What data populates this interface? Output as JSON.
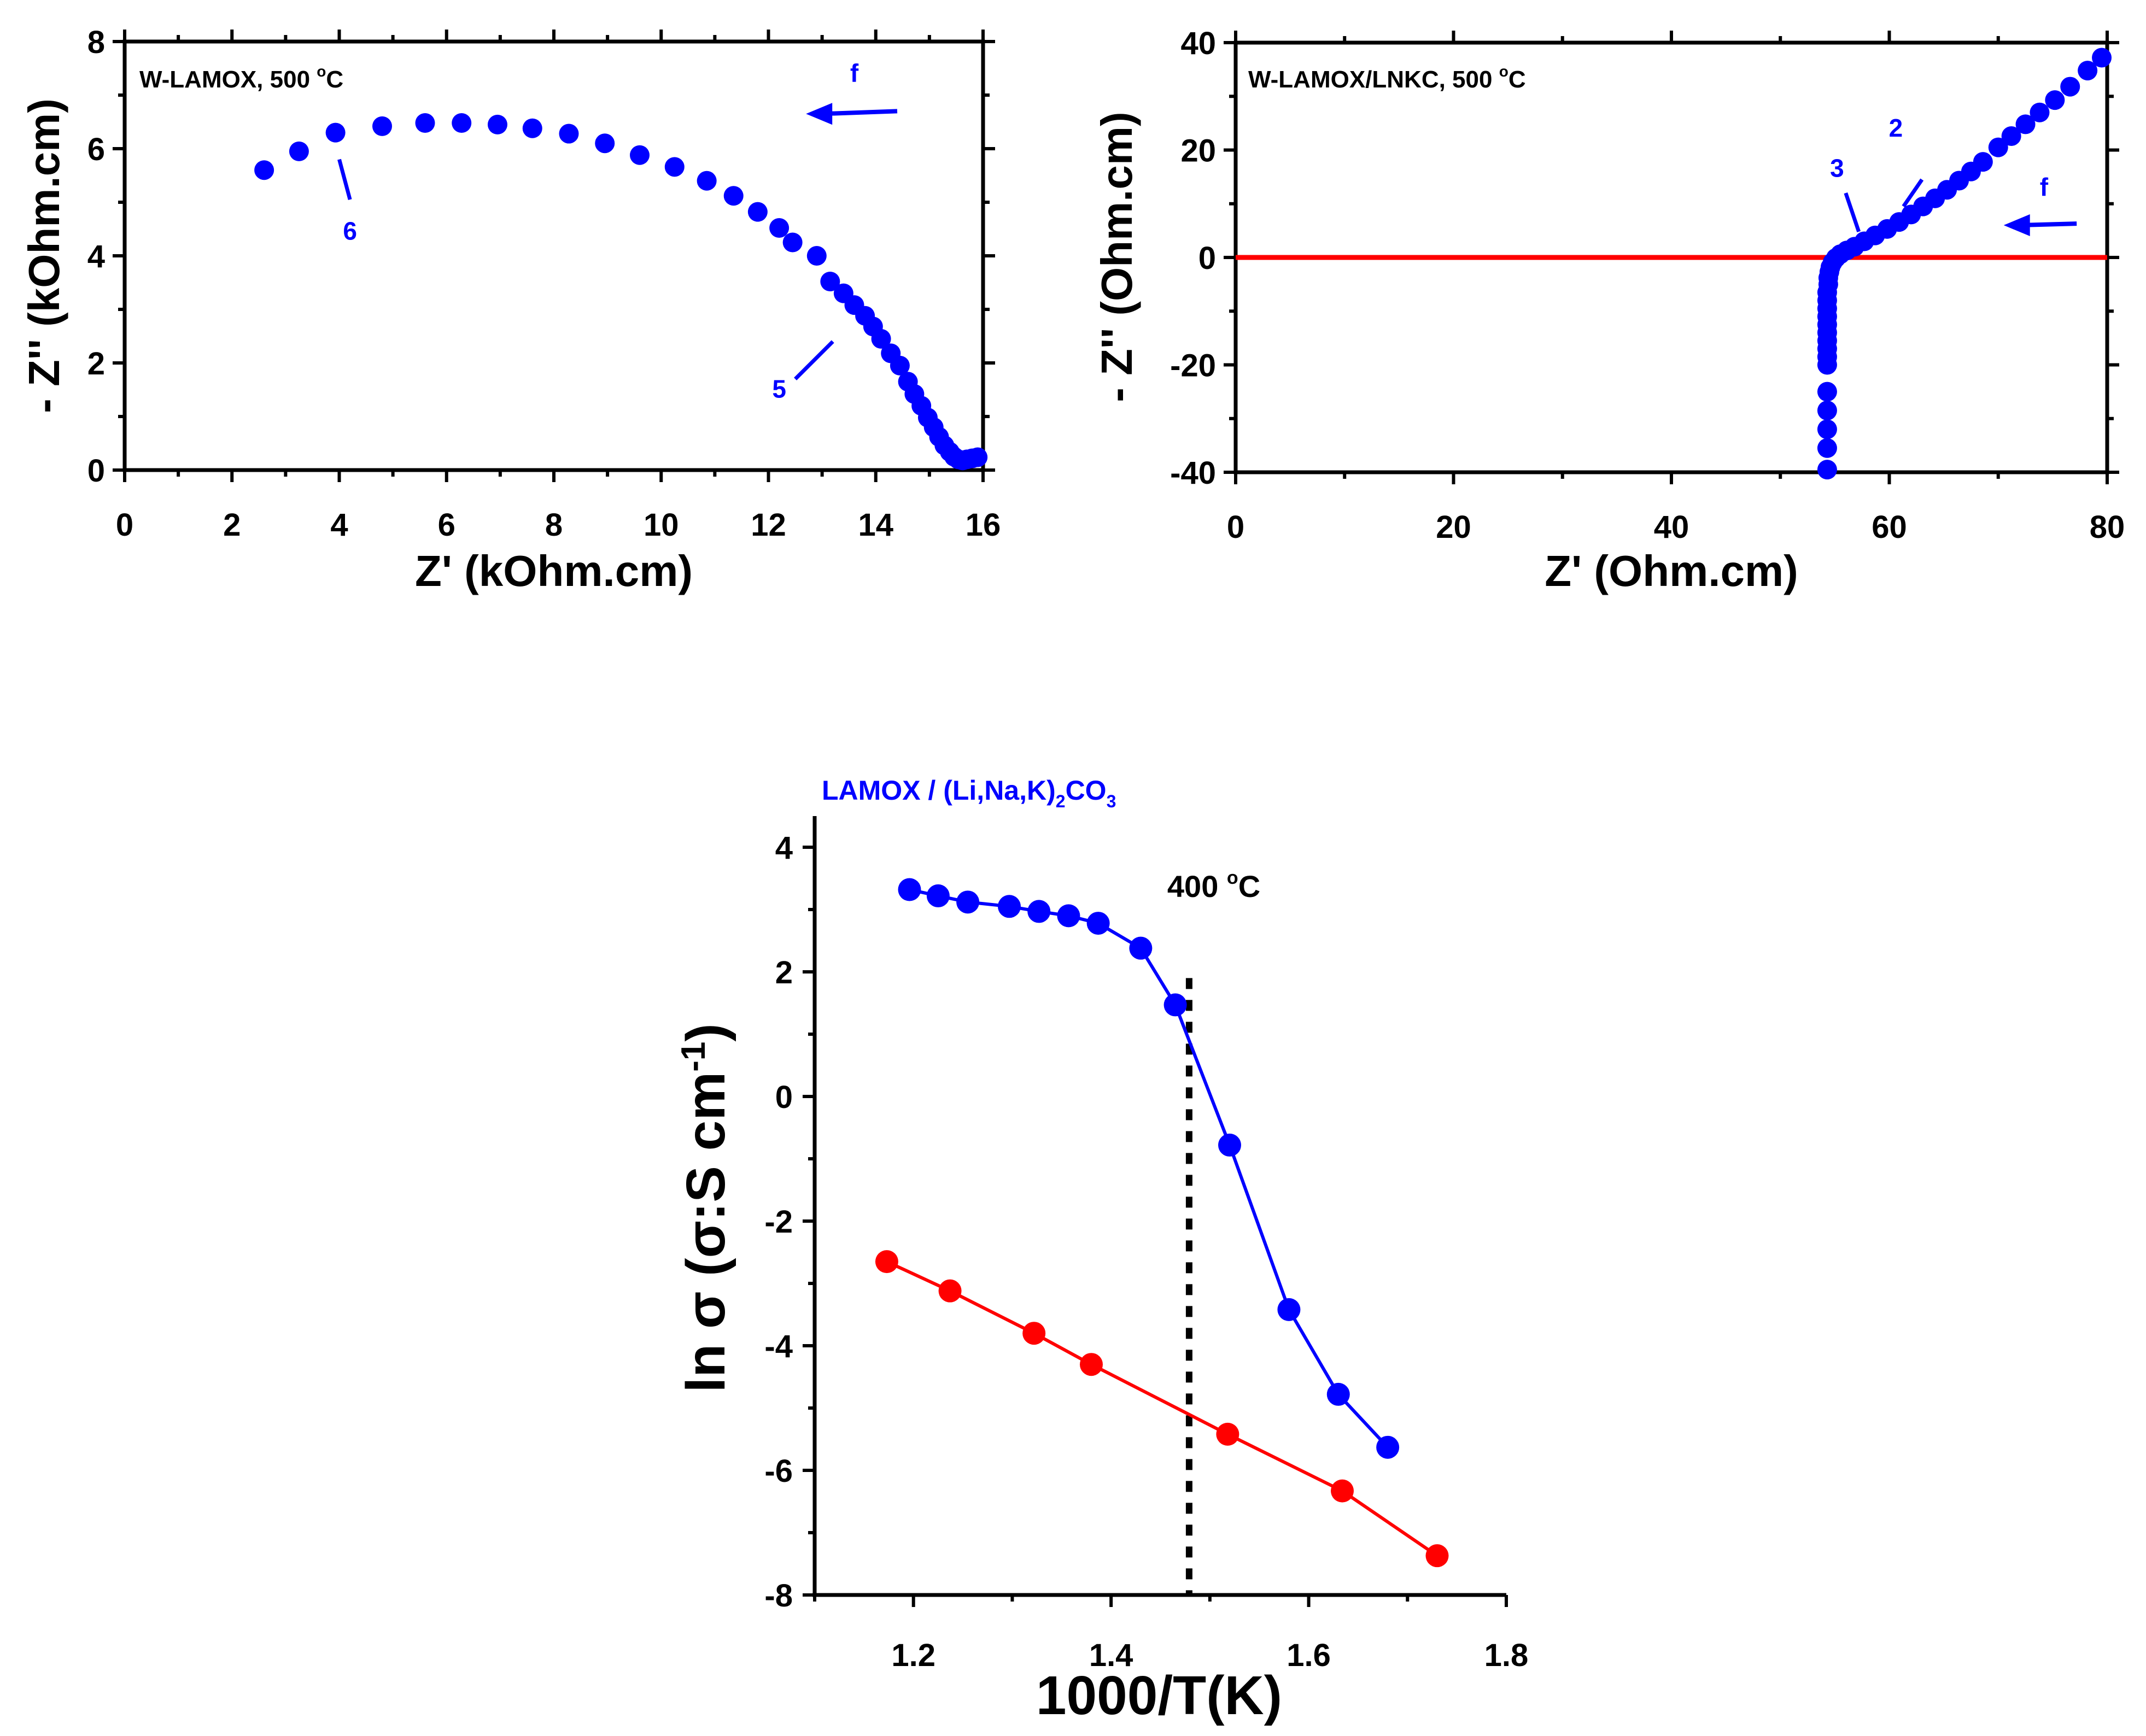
{
  "colors": {
    "blue": "#0000ff",
    "red": "#ff0000",
    "black": "#000000"
  },
  "chart_data": [
    {
      "id": "p1",
      "type": "scatter",
      "title": "W-LAMOX, 500 °C",
      "title_main": "W-LAMOX, 500 ",
      "title_sup": "o",
      "title_end": "C",
      "xlabel": "Z' (kOhm.cm)",
      "ylabel": "- Z'' (kOhm.cm)",
      "xlim": [
        0,
        16
      ],
      "ylim": [
        0,
        8
      ],
      "xticks": [
        0,
        2,
        4,
        6,
        8,
        10,
        12,
        14,
        16
      ],
      "yticks": [
        0,
        2,
        4,
        6,
        8
      ],
      "xminor": [
        1,
        3,
        5,
        7,
        9,
        11,
        13,
        15
      ],
      "yminor": [
        1,
        3,
        5,
        7
      ],
      "tick_labels_x": [
        "0",
        "2",
        "4",
        "6",
        "8",
        "10",
        "12",
        "14",
        "16"
      ],
      "tick_labels_y": [
        "0",
        "2",
        "4",
        "6",
        "8"
      ],
      "series": [
        {
          "name": "W-LAMOX",
          "color": "#0000ff",
          "x": [
            2.6,
            3.25,
            3.93,
            4.8,
            5.6,
            6.28,
            6.95,
            7.6,
            8.28,
            8.95,
            9.6,
            10.25,
            10.85,
            11.35,
            11.8,
            12.2,
            12.45,
            12.9,
            13.15,
            13.4,
            13.6,
            13.8,
            13.95,
            14.1,
            14.28,
            14.45,
            14.6,
            14.72,
            14.85,
            14.97,
            15.08,
            15.18,
            15.28,
            15.38,
            15.46,
            15.54,
            15.62,
            15.7,
            15.8,
            15.9
          ],
          "y": [
            5.6,
            5.95,
            6.3,
            6.42,
            6.48,
            6.48,
            6.45,
            6.38,
            6.28,
            6.1,
            5.88,
            5.66,
            5.4,
            5.12,
            4.82,
            4.52,
            4.25,
            4.0,
            3.52,
            3.3,
            3.08,
            2.88,
            2.68,
            2.45,
            2.18,
            1.95,
            1.65,
            1.42,
            1.2,
            0.98,
            0.8,
            0.62,
            0.46,
            0.34,
            0.25,
            0.2,
            0.18,
            0.2,
            0.22,
            0.24
          ]
        }
      ],
      "annotations": [
        {
          "text": "6",
          "pointer_from": [
            4.0,
            5.8
          ],
          "pointer_to": [
            4.2,
            5.05
          ],
          "label_at": [
            4.2,
            4.3
          ]
        },
        {
          "text": "5",
          "pointer_from": [
            13.2,
            2.4
          ],
          "pointer_to": [
            12.5,
            1.7
          ],
          "label_at": [
            12.2,
            1.35
          ]
        },
        {
          "text": "f",
          "arrow_from": [
            14.4,
            6.7
          ],
          "arrow_to": [
            12.7,
            6.65
          ],
          "label_at": [
            13.6,
            7.25
          ]
        }
      ]
    },
    {
      "id": "p2",
      "type": "scatter",
      "title": "W-LAMOX/LNKC, 500 °C",
      "title_main": "W-LAMOX/LNKC, 500 ",
      "title_sup": "o",
      "title_end": "C",
      "xlabel": "Z' (Ohm.cm)",
      "ylabel": "- Z'' (Ohm.cm)",
      "xlim": [
        0,
        80
      ],
      "ylim": [
        -40,
        40
      ],
      "xticks": [
        0,
        20,
        40,
        60,
        80
      ],
      "yticks": [
        -40,
        -20,
        0,
        20,
        40
      ],
      "xminor": [
        10,
        30,
        50,
        70
      ],
      "yminor": [
        -30,
        -10,
        10,
        30
      ],
      "tick_labels_x": [
        "0",
        "20",
        "40",
        "60",
        "80"
      ],
      "tick_labels_y": [
        "-40",
        "-20",
        "0",
        "20",
        "40"
      ],
      "reference_line": {
        "y": 0,
        "color": "#ff0000"
      },
      "series": [
        {
          "name": "W-LAMOX/LNKC",
          "color": "#0000ff",
          "x": [
            54.3,
            54.3,
            54.3,
            54.3,
            54.3,
            54.3,
            54.3,
            54.3,
            54.3,
            54.3,
            54.3,
            54.3,
            54.3,
            54.3,
            54.3,
            54.4,
            54.4,
            54.5,
            54.6,
            54.8,
            55.1,
            55.5,
            56.1,
            56.8,
            57.7,
            58.7,
            59.8,
            60.9,
            62.0,
            63.1,
            64.2,
            65.3,
            66.4,
            67.5,
            68.6,
            70.0,
            71.2,
            72.5,
            73.8,
            75.2,
            76.6,
            78.2,
            79.5
          ],
          "y": [
            -39.5,
            -35.5,
            -32.0,
            -28.5,
            -25.0,
            -20.0,
            -18.5,
            -17.0,
            -15.5,
            -14.0,
            -12.5,
            -11.0,
            -9.5,
            -8.0,
            -6.5,
            -5.0,
            -3.8,
            -2.7,
            -1.8,
            -0.9,
            -0.1,
            0.6,
            1.3,
            2.0,
            3.0,
            4.1,
            5.3,
            6.6,
            8.0,
            9.5,
            11.0,
            12.6,
            14.3,
            16.0,
            17.8,
            20.5,
            22.6,
            24.8,
            27.0,
            29.3,
            31.8,
            34.8,
            37.2
          ]
        }
      ],
      "annotations": [
        {
          "text": "2",
          "pointer_from": [
            63.0,
            14.5
          ],
          "pointer_to": [
            61.3,
            9.5
          ],
          "label_at": [
            60.6,
            22.5
          ]
        },
        {
          "text": "3",
          "pointer_from": [
            56.0,
            12.0
          ],
          "pointer_to": [
            57.2,
            4.8
          ],
          "label_at": [
            55.2,
            15.0
          ]
        },
        {
          "text": "f",
          "arrow_from": [
            77.2,
            6.3
          ],
          "arrow_to": [
            70.5,
            6.0
          ],
          "label_at": [
            74.2,
            11.5
          ]
        }
      ]
    },
    {
      "id": "p3",
      "type": "line",
      "title": "LAMOX / (Li,Na,K)2CO3",
      "title_parts": [
        "LAMOX / (Li,Na,K)",
        "2",
        "CO",
        "3"
      ],
      "xlabel": "1000/T(K)",
      "ylabel": "ln σ (σ:S cm-1)",
      "ylabel_main": "ln σ (σ:S cm",
      "ylabel_sup": "-1",
      "ylabel_end": ")",
      "xlim": [
        1.1,
        1.8
      ],
      "ylim": [
        -8,
        4.5
      ],
      "xticks": [
        1.2,
        1.4,
        1.6,
        1.8
      ],
      "yticks": [
        -8,
        -6,
        -4,
        -2,
        0,
        2,
        4
      ],
      "xminor": [
        1.1,
        1.3,
        1.5,
        1.7
      ],
      "yminor": [
        -7,
        -5,
        -3,
        -1,
        1,
        3
      ],
      "tick_labels_x": [
        "1.2",
        "1.4",
        "1.6",
        "1.8"
      ],
      "tick_labels_y": [
        "-8",
        "-6",
        "-4",
        "-2",
        "0",
        "2",
        "4"
      ],
      "vline": {
        "x": 1.479,
        "label": "400 °C",
        "label_main": "400 ",
        "label_sup": "o",
        "label_end": "C"
      },
      "series": [
        {
          "name": "LAMOX / (Li,Na,K)2CO3",
          "color": "#0000ff",
          "x": [
            1.196,
            1.225,
            1.255,
            1.297,
            1.327,
            1.357,
            1.387,
            1.43,
            1.465,
            1.52,
            1.58,
            1.63,
            1.68
          ],
          "y": [
            3.32,
            3.22,
            3.12,
            3.05,
            2.97,
            2.9,
            2.78,
            2.38,
            1.47,
            -0.78,
            -3.42,
            -4.78,
            -5.63
          ]
        },
        {
          "name": "LAMOX",
          "color": "#ff0000",
          "x": [
            1.173,
            1.237,
            1.322,
            1.38,
            1.518,
            1.634,
            1.73
          ],
          "y": [
            -2.65,
            -3.12,
            -3.8,
            -4.3,
            -5.42,
            -6.33,
            -7.37
          ]
        }
      ]
    }
  ]
}
